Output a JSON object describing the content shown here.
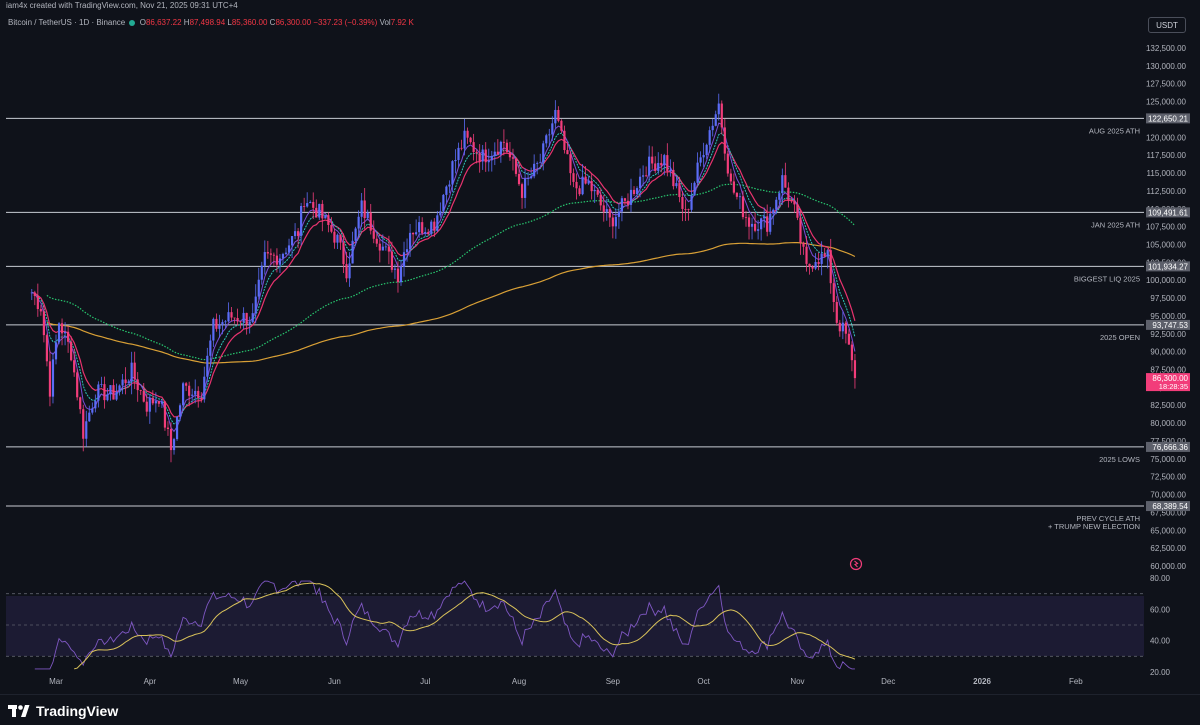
{
  "header": {
    "attribution": "iam4x created with TradingView.com, Nov 21, 2025 09:31 UTC+4",
    "symbol": "Bitcoin / TetherUS · 1D · Binance",
    "o_label": "O",
    "o_value": "86,637.22",
    "h_label": "H",
    "h_value": "87,498.94",
    "l_label": "L",
    "l_value": "85,360.00",
    "c_label": "C",
    "c_value": "86,300.00",
    "change": "−337.23 (−0.39%)",
    "vol_label": "Vol",
    "vol_value": "7.92 K",
    "currency": "USDT"
  },
  "footer": {
    "brand": "TradingView"
  },
  "colors": {
    "background": "#0f121a",
    "up": "#5b6cf6",
    "down": "#f23d7a",
    "ema_fast": "#7b4bd6",
    "ema_mid": "#2ec5b8",
    "ema_slow": "#e8336e",
    "sma_100": "#28c76f",
    "sma_200": "#d9a036",
    "rsi": "#7e57c2",
    "rsi_ma": "#d9c25a",
    "level_line": "#c8cbd3",
    "price_tag": "#f23d7a"
  },
  "chart_data": {
    "type": "candlestick",
    "price_axis": {
      "range": [
        60000,
        132500
      ],
      "ticks": [
        "132,500.00",
        "130,000.00",
        "127,500.00",
        "125,000.00",
        "122,500.00",
        "120,000.00",
        "117,500.00",
        "115,000.00",
        "112,500.00",
        "110,000.00",
        "107,500.00",
        "105,000.00",
        "102,500.00",
        "100,000.00",
        "97,500.00",
        "95,000.00",
        "92,500.00",
        "90,000.00",
        "87,500.00",
        "85,000.00",
        "82,500.00",
        "80,000.00",
        "77,500.00",
        "75,000.00",
        "72,500.00",
        "70,000.00",
        "67,500.00",
        "65,000.00",
        "62,500.00",
        "60,000.00"
      ]
    },
    "time_axis": [
      "Mar",
      "Apr",
      "May",
      "Jun",
      "Jul",
      "Aug",
      "Sep",
      "Oct",
      "Nov",
      "Dec",
      "2026",
      "Feb"
    ],
    "levels": [
      {
        "price": 122650.21,
        "label": "122,650.21",
        "name": "AUG 2025 ATH"
      },
      {
        "price": 109491.61,
        "label": "109,491.61",
        "name": "JAN 2025 ATH"
      },
      {
        "price": 101934.27,
        "label": "101,934.27",
        "name": "BIGGEST LIQ 2025"
      },
      {
        "price": 93747.53,
        "label": "93,747.53",
        "name": "2025 OPEN"
      },
      {
        "price": 76666.36,
        "label": "76,666.36",
        "name": "2025 LOWS"
      },
      {
        "price": 68389.54,
        "label": "68,389.54",
        "name": "PREV CYCLE ATH",
        "name2": "+ TRUMP NEW ELECTION"
      }
    ],
    "last_price": {
      "price": 86300,
      "label": "86,300.00",
      "countdown": "18:28:35"
    },
    "close_keyframes": [
      [
        "2025-02-21",
        98300
      ],
      [
        "2025-02-24",
        96300
      ],
      [
        "2025-02-27",
        84800
      ],
      [
        "2025-03-02",
        94200
      ],
      [
        "2025-03-06",
        89900
      ],
      [
        "2025-03-10",
        78700
      ],
      [
        "2025-03-14",
        84300
      ],
      [
        "2025-03-20",
        84100
      ],
      [
        "2025-03-26",
        87200
      ],
      [
        "2025-03-31",
        82500
      ],
      [
        "2025-04-04",
        83800
      ],
      [
        "2025-04-08",
        76300
      ],
      [
        "2025-04-12",
        84900
      ],
      [
        "2025-04-18",
        84500
      ],
      [
        "2025-04-22",
        93400
      ],
      [
        "2025-04-28",
        94900
      ],
      [
        "2025-05-05",
        94700
      ],
      [
        "2025-05-09",
        103000
      ],
      [
        "2025-05-14",
        103500
      ],
      [
        "2025-05-20",
        106800
      ],
      [
        "2025-05-22",
        111600
      ],
      [
        "2025-05-27",
        109400
      ],
      [
        "2025-06-02",
        105600
      ],
      [
        "2025-06-05",
        101500
      ],
      [
        "2025-06-10",
        110200
      ],
      [
        "2025-06-17",
        104600
      ],
      [
        "2025-06-22",
        100900
      ],
      [
        "2025-06-26",
        107000
      ],
      [
        "2025-07-04",
        108000
      ],
      [
        "2025-07-10",
        116000
      ],
      [
        "2025-07-14",
        119800
      ],
      [
        "2025-07-20",
        117300
      ],
      [
        "2025-07-27",
        119400
      ],
      [
        "2025-08-02",
        112500
      ],
      [
        "2025-08-08",
        116600
      ],
      [
        "2025-08-13",
        123300
      ],
      [
        "2025-08-19",
        112900
      ],
      [
        "2025-08-24",
        113500
      ],
      [
        "2025-08-31",
        108200
      ],
      [
        "2025-09-05",
        110700
      ],
      [
        "2025-09-12",
        115900
      ],
      [
        "2025-09-18",
        117100
      ],
      [
        "2025-09-25",
        109100
      ],
      [
        "2025-10-01",
        118600
      ],
      [
        "2025-10-06",
        124700
      ],
      [
        "2025-10-10",
        113200
      ],
      [
        "2025-10-16",
        108200
      ],
      [
        "2025-10-22",
        108000
      ],
      [
        "2025-10-27",
        114100
      ],
      [
        "2025-10-31",
        109600
      ],
      [
        "2025-11-04",
        101500
      ],
      [
        "2025-11-07",
        103300
      ],
      [
        "2025-11-11",
        103000
      ],
      [
        "2025-11-14",
        94500
      ],
      [
        "2025-11-17",
        92200
      ],
      [
        "2025-11-20",
        86300
      ]
    ],
    "rsi": {
      "ticks": [
        "80.00",
        "60.00",
        "40.00",
        "20.00"
      ],
      "range": [
        20,
        80
      ],
      "bands": [
        70,
        50,
        30
      ]
    }
  }
}
